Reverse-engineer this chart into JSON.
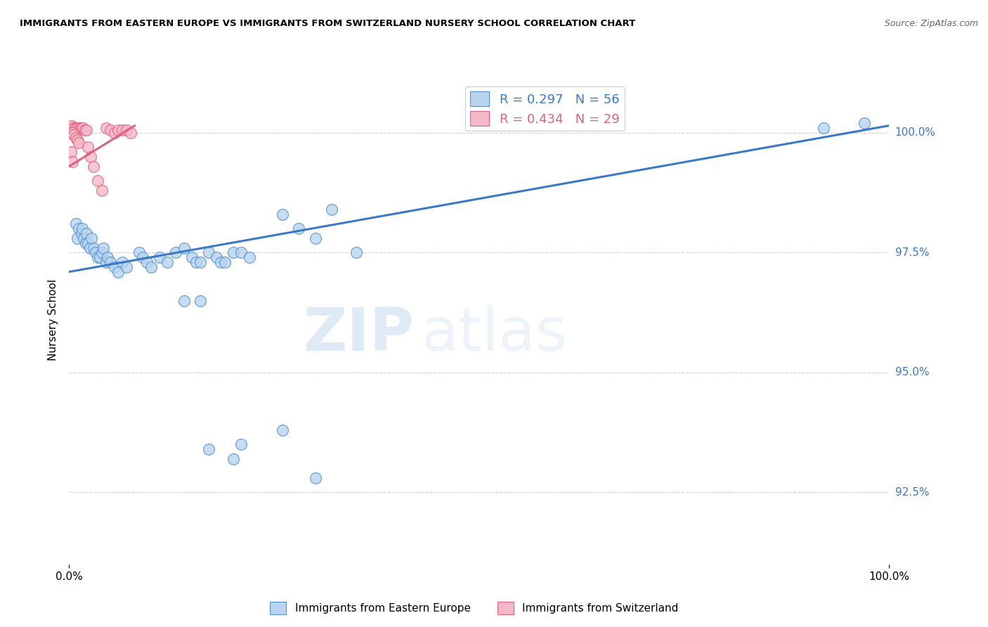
{
  "title": "IMMIGRANTS FROM EASTERN EUROPE VS IMMIGRANTS FROM SWITZERLAND NURSERY SCHOOL CORRELATION CHART",
  "source": "Source: ZipAtlas.com",
  "ylabel": "Nursery School",
  "y_ticks": [
    92.5,
    95.0,
    97.5,
    100.0
  ],
  "y_min": 91.0,
  "y_max": 101.2,
  "x_min": 0.0,
  "x_max": 100.0,
  "legend_blue_label": "R = 0.297   N = 56",
  "legend_pink_label": "R = 0.434   N = 29",
  "legend_bottom_blue": "Immigrants from Eastern Europe",
  "legend_bottom_pink": "Immigrants from Switzerland",
  "blue_fill": "#b8d4f0",
  "blue_edge": "#5090d0",
  "pink_fill": "#f5b8c8",
  "pink_edge": "#e06080",
  "blue_line_color": "#3a78c9",
  "pink_line_color": "#e06080",
  "watermark_zip": "ZIP",
  "watermark_atlas": "atlas",
  "blue_dots": [
    [
      0.8,
      98.1
    ],
    [
      1.0,
      97.8
    ],
    [
      1.2,
      98.0
    ],
    [
      1.5,
      97.9
    ],
    [
      1.6,
      98.0
    ],
    [
      1.8,
      97.8
    ],
    [
      2.0,
      97.7
    ],
    [
      2.1,
      97.9
    ],
    [
      2.3,
      97.7
    ],
    [
      2.5,
      97.6
    ],
    [
      2.7,
      97.8
    ],
    [
      3.0,
      97.6
    ],
    [
      3.2,
      97.5
    ],
    [
      3.5,
      97.4
    ],
    [
      3.7,
      97.4
    ],
    [
      4.0,
      97.5
    ],
    [
      4.2,
      97.6
    ],
    [
      4.5,
      97.3
    ],
    [
      4.7,
      97.4
    ],
    [
      5.0,
      97.3
    ],
    [
      5.5,
      97.2
    ],
    [
      6.0,
      97.1
    ],
    [
      6.5,
      97.3
    ],
    [
      7.0,
      97.2
    ],
    [
      8.5,
      97.5
    ],
    [
      9.0,
      97.4
    ],
    [
      9.5,
      97.3
    ],
    [
      10.0,
      97.2
    ],
    [
      11.0,
      97.4
    ],
    [
      12.0,
      97.3
    ],
    [
      13.0,
      97.5
    ],
    [
      14.0,
      97.6
    ],
    [
      15.0,
      97.4
    ],
    [
      15.5,
      97.3
    ],
    [
      16.0,
      97.3
    ],
    [
      17.0,
      97.5
    ],
    [
      18.0,
      97.4
    ],
    [
      18.5,
      97.3
    ],
    [
      19.0,
      97.3
    ],
    [
      20.0,
      97.5
    ],
    [
      21.0,
      97.5
    ],
    [
      22.0,
      97.4
    ],
    [
      26.0,
      98.3
    ],
    [
      28.0,
      98.0
    ],
    [
      30.0,
      97.8
    ],
    [
      32.0,
      98.4
    ],
    [
      35.0,
      97.5
    ],
    [
      14.0,
      96.5
    ],
    [
      16.0,
      96.5
    ],
    [
      17.0,
      93.4
    ],
    [
      20.0,
      93.2
    ],
    [
      21.0,
      93.5
    ],
    [
      26.0,
      93.8
    ],
    [
      30.0,
      92.8
    ],
    [
      92.0,
      100.1
    ],
    [
      97.0,
      100.2
    ]
  ],
  "pink_dots": [
    [
      0.3,
      100.15
    ],
    [
      0.5,
      100.1
    ],
    [
      0.7,
      100.1
    ],
    [
      0.9,
      100.1
    ],
    [
      1.1,
      100.1
    ],
    [
      1.3,
      100.1
    ],
    [
      1.5,
      100.1
    ],
    [
      1.7,
      100.1
    ],
    [
      1.9,
      100.05
    ],
    [
      2.1,
      100.05
    ],
    [
      0.4,
      100.0
    ],
    [
      0.6,
      99.95
    ],
    [
      0.8,
      99.9
    ],
    [
      1.0,
      99.85
    ],
    [
      1.2,
      99.8
    ],
    [
      2.3,
      99.7
    ],
    [
      2.6,
      99.5
    ],
    [
      3.0,
      99.3
    ],
    [
      3.5,
      99.0
    ],
    [
      4.0,
      98.8
    ],
    [
      4.5,
      100.1
    ],
    [
      5.0,
      100.05
    ],
    [
      5.5,
      100.0
    ],
    [
      6.0,
      100.05
    ],
    [
      6.5,
      100.05
    ],
    [
      7.0,
      100.05
    ],
    [
      7.5,
      100.0
    ],
    [
      0.2,
      99.6
    ],
    [
      0.35,
      99.4
    ]
  ],
  "blue_line_x": [
    0.0,
    100.0
  ],
  "blue_line_y": [
    97.1,
    100.15
  ],
  "pink_line_x": [
    0.0,
    8.0
  ],
  "pink_line_y": [
    99.3,
    100.15
  ]
}
